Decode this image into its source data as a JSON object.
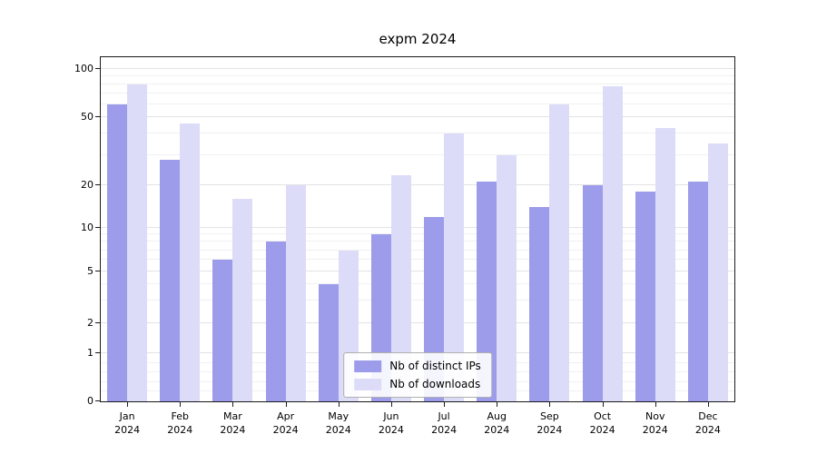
{
  "chart_data": {
    "type": "bar",
    "title": "expm 2024",
    "categories": [
      "Jan\n2024",
      "Feb\n2024",
      "Mar\n2024",
      "Apr\n2024",
      "May\n2024",
      "Jun\n2024",
      "Jul\n2024",
      "Aug\n2024",
      "Sep\n2024",
      "Oct\n2024",
      "Nov\n2024",
      "Dec\n2024"
    ],
    "series": [
      {
        "name": "Nb of distinct IPs",
        "color": "#9c9cea",
        "values": [
          60,
          28,
          6,
          8,
          4,
          9,
          12,
          21,
          14,
          20,
          18,
          21
        ]
      },
      {
        "name": "Nb of downloads",
        "color": "#dcdcf8",
        "values": [
          80,
          46,
          16,
          20,
          7,
          23,
          40,
          30,
          60,
          78,
          43,
          35
        ]
      }
    ],
    "yscale": "symlog",
    "yticks": [
      0,
      1,
      2,
      5,
      10,
      20,
      50,
      100
    ],
    "minor_yticks": [
      0.2,
      0.4,
      0.6,
      0.8,
      3,
      4,
      6,
      7,
      8,
      9,
      30,
      40,
      60,
      70,
      80,
      90
    ],
    "ylim": [
      0,
      122
    ],
    "grid": "horizontal",
    "legend_position": "lower center"
  }
}
